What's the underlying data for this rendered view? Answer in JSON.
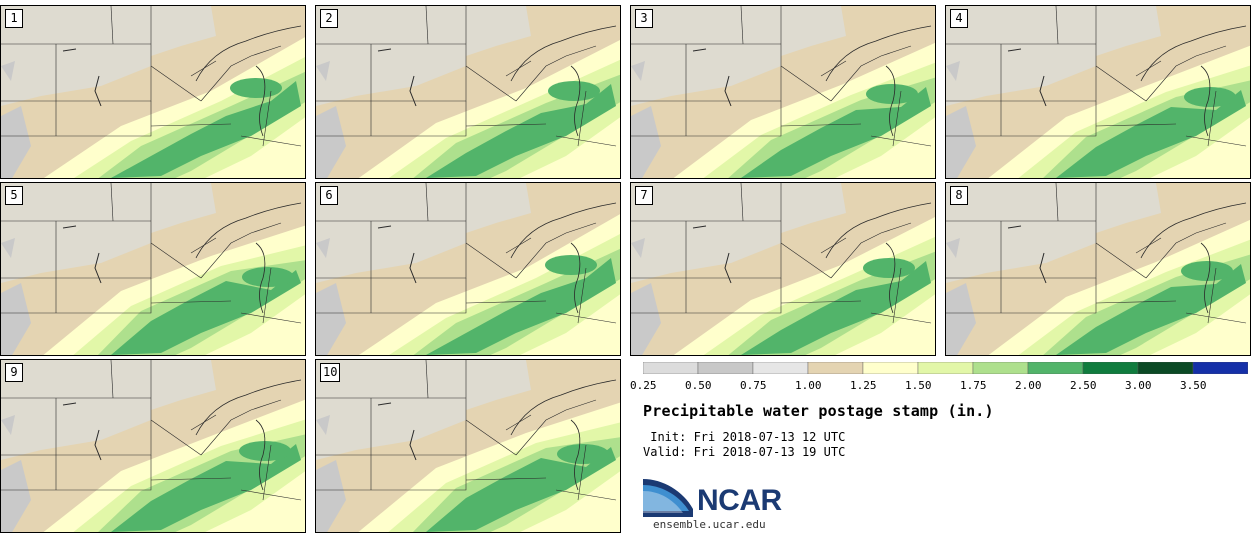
{
  "panels": [
    {
      "label": "1"
    },
    {
      "label": "2"
    },
    {
      "label": "3"
    },
    {
      "label": "4"
    },
    {
      "label": "5"
    },
    {
      "label": "6"
    },
    {
      "label": "7"
    },
    {
      "label": "8"
    },
    {
      "label": "9"
    },
    {
      "label": "10"
    }
  ],
  "legend": {
    "ticks": [
      "0.25",
      "0.50",
      "0.75",
      "1.00",
      "1.25",
      "1.50",
      "1.75",
      "2.00",
      "2.50",
      "3.00",
      "3.50"
    ],
    "colors": [
      "#dcdcdc",
      "#c8c8c8",
      "#e6e6e6",
      "#e4d4b2",
      "#ffffcc",
      "#e2f7a8",
      "#aee08d",
      "#52b46a",
      "#107c3e",
      "#0b4a25",
      "#1530a8"
    ]
  },
  "title": "Precipitable water postage stamp (in.)",
  "init": " Init: Fri 2018-07-13 12 UTC",
  "valid": "Valid: Fri 2018-07-13 19 UTC",
  "logo": {
    "name": "NCAR",
    "url": "ensemble.ucar.edu"
  }
}
